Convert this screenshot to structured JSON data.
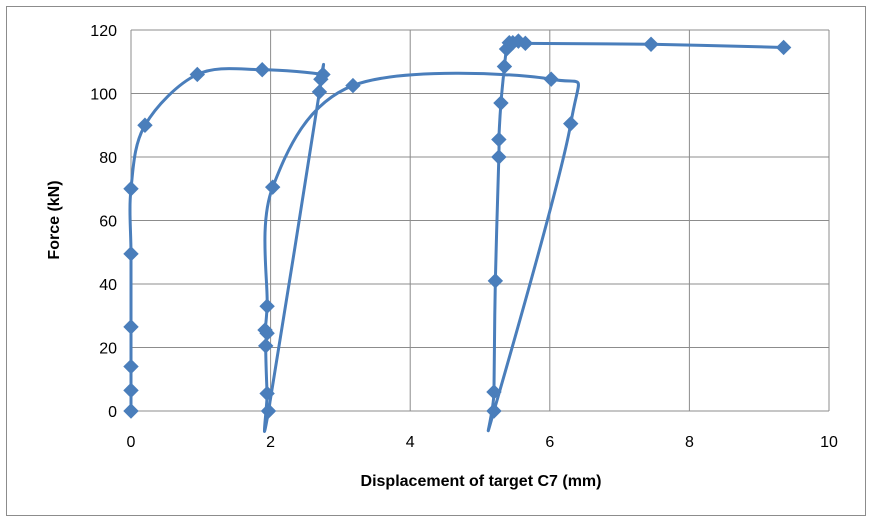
{
  "chart_data": {
    "type": "scatter",
    "title": "",
    "xlabel": "Displacement of target C7 (mm)",
    "ylabel": "Force (kN)",
    "xlim": [
      0,
      10
    ],
    "ylim": [
      0,
      120
    ],
    "x_ticks": [
      0,
      2,
      4,
      6,
      8,
      10
    ],
    "y_ticks": [
      0,
      20,
      40,
      60,
      80,
      100,
      120
    ],
    "grid": true,
    "legend": "none",
    "series_color": "#4a7ebb",
    "series": [
      {
        "points": [
          [
            0,
            0
          ],
          [
            0,
            6.5
          ],
          [
            0,
            14
          ],
          [
            0,
            26.5
          ],
          [
            0,
            49.5
          ],
          [
            0,
            70
          ],
          [
            0.2,
            90
          ],
          [
            0.95,
            106
          ],
          [
            1.88,
            107.5
          ],
          [
            2.75,
            106
          ],
          [
            2.72,
            104.5
          ],
          [
            2.7,
            100.5
          ],
          [
            1.97,
            0
          ],
          [
            1.95,
            5.5
          ],
          [
            1.93,
            20.5
          ],
          [
            1.95,
            24.5
          ],
          [
            1.92,
            25.5
          ],
          [
            1.95,
            33
          ],
          [
            2.03,
            70.5
          ],
          [
            3.18,
            102.5
          ],
          [
            6.02,
            104.5
          ],
          [
            6.3,
            90.5
          ],
          [
            5.2,
            0
          ],
          [
            5.2,
            6
          ],
          [
            5.22,
            41
          ],
          [
            5.27,
            80
          ],
          [
            5.27,
            85.5
          ],
          [
            5.3,
            97
          ],
          [
            5.35,
            108.5
          ],
          [
            5.38,
            114
          ],
          [
            5.42,
            116
          ],
          [
            5.47,
            116
          ],
          [
            5.55,
            116.5
          ],
          [
            5.65,
            115.8
          ],
          [
            7.45,
            115.5
          ],
          [
            9.35,
            114.5
          ]
        ]
      }
    ]
  }
}
